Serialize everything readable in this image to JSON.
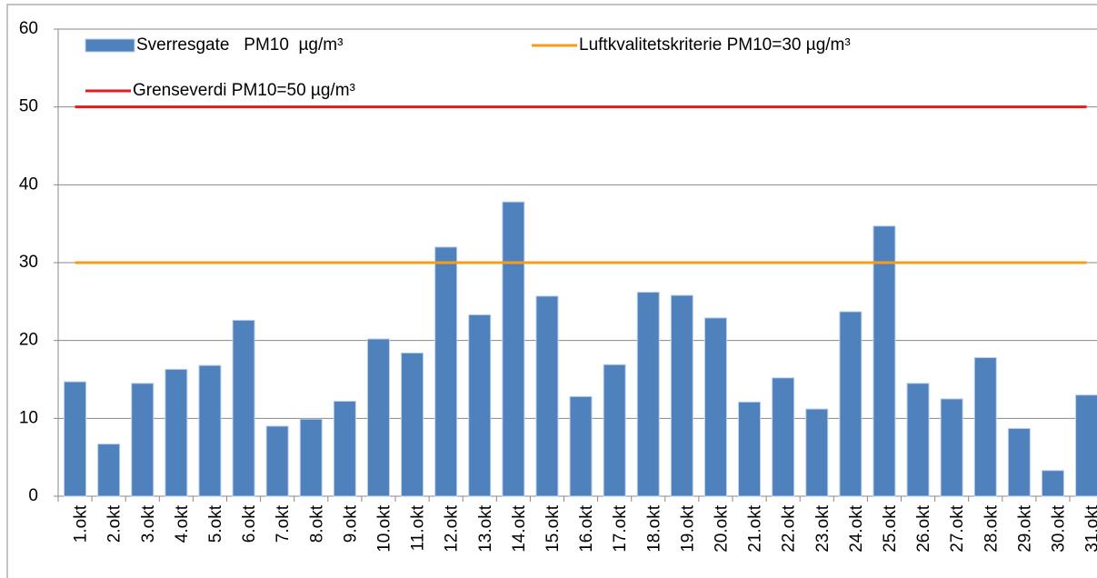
{
  "chart_data": {
    "type": "bar",
    "categories": [
      "1.okt",
      "2.okt",
      "3.okt",
      "4.okt",
      "5.okt",
      "6.okt",
      "7.okt",
      "8.okt",
      "9.okt",
      "10.okt",
      "11.okt",
      "12.okt",
      "13.okt",
      "14.okt",
      "15.okt",
      "16.okt",
      "17.okt",
      "18.okt",
      "19.okt",
      "20.okt",
      "21.okt",
      "22.okt",
      "23.okt",
      "24.okt",
      "25.okt",
      "26.okt",
      "27.okt",
      "28.okt",
      "29.okt",
      "30.okt",
      "31.okt"
    ],
    "series": [
      {
        "name": "Sverresgate   PM10  µg/m³",
        "type": "bar",
        "color": "#4f81bd",
        "values": [
          14.7,
          6.7,
          14.5,
          16.3,
          16.8,
          22.6,
          9.0,
          9.9,
          12.2,
          20.2,
          18.4,
          32.0,
          23.3,
          37.8,
          25.7,
          12.8,
          16.9,
          26.2,
          25.8,
          22.9,
          12.1,
          15.2,
          11.2,
          23.7,
          34.7,
          14.5,
          12.5,
          17.8,
          8.7,
          3.3,
          13.0
        ]
      },
      {
        "name": "Luftkvalitetskriterie PM10=30 µg/m³",
        "type": "line",
        "color": "#f59d1a",
        "values": [
          30,
          30,
          30,
          30,
          30,
          30,
          30,
          30,
          30,
          30,
          30,
          30,
          30,
          30,
          30,
          30,
          30,
          30,
          30,
          30,
          30,
          30,
          30,
          30,
          30,
          30,
          30,
          30,
          30,
          30,
          30
        ]
      },
      {
        "name": "Grenseverdi PM10=50 µg/m³",
        "type": "line",
        "color": "#e41a1c",
        "values": [
          50,
          50,
          50,
          50,
          50,
          50,
          50,
          50,
          50,
          50,
          50,
          50,
          50,
          50,
          50,
          50,
          50,
          50,
          50,
          50,
          50,
          50,
          50,
          50,
          50,
          50,
          50,
          50,
          50,
          50,
          50
        ]
      }
    ],
    "ylim": [
      0,
      60
    ],
    "yticks": [
      0,
      10,
      20,
      30,
      40,
      50,
      60
    ],
    "grid": true
  }
}
